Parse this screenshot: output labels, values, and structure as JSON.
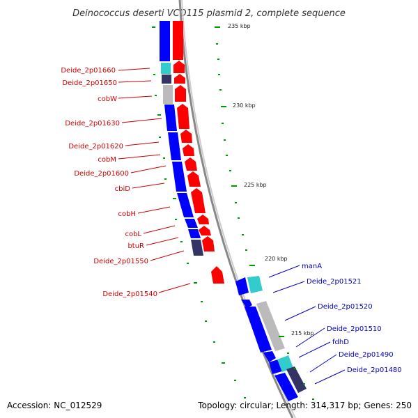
{
  "title": "Deinococcus deserti VCD115 plasmid 2, complete sequence",
  "colors": {
    "forward_cds": "#ff0000",
    "reverse_cds": "#0000ff",
    "gc_cyan": "#33cccc",
    "gc_grey": "#bbbbbb",
    "gc_navy": "#333366",
    "tick": "#009900",
    "left_label": "#cc0000",
    "right_label": "#0000bb",
    "backbone": "#888888"
  },
  "ticks": [
    {
      "label": "235 kbp"
    },
    {
      "label": "230 kbp"
    },
    {
      "label": "225 kbp"
    },
    {
      "label": "220 kbp"
    },
    {
      "label": "215 kbp"
    }
  ],
  "left_labels": [
    "Deide_2p01660",
    "Deide_2p01650",
    "cobW",
    "Deide_2p01630",
    "Deide_2p01620",
    "cobM",
    "Deide_2p01600",
    "cbiD",
    "cobH",
    "cobL",
    "btuR",
    "Deide_2p01550",
    "Deide_2p01540"
  ],
  "right_labels": [
    "manA",
    "Deide_2p01521",
    "Deide_2p01520",
    "Deide_2p01510",
    "fdhD",
    "Deide_2p01490",
    "Deide_2p01480"
  ],
  "footer": {
    "accession": "Accession: NC_012529",
    "summary": "Topology: circular; Length: 314,317 bp; Genes: 250"
  }
}
